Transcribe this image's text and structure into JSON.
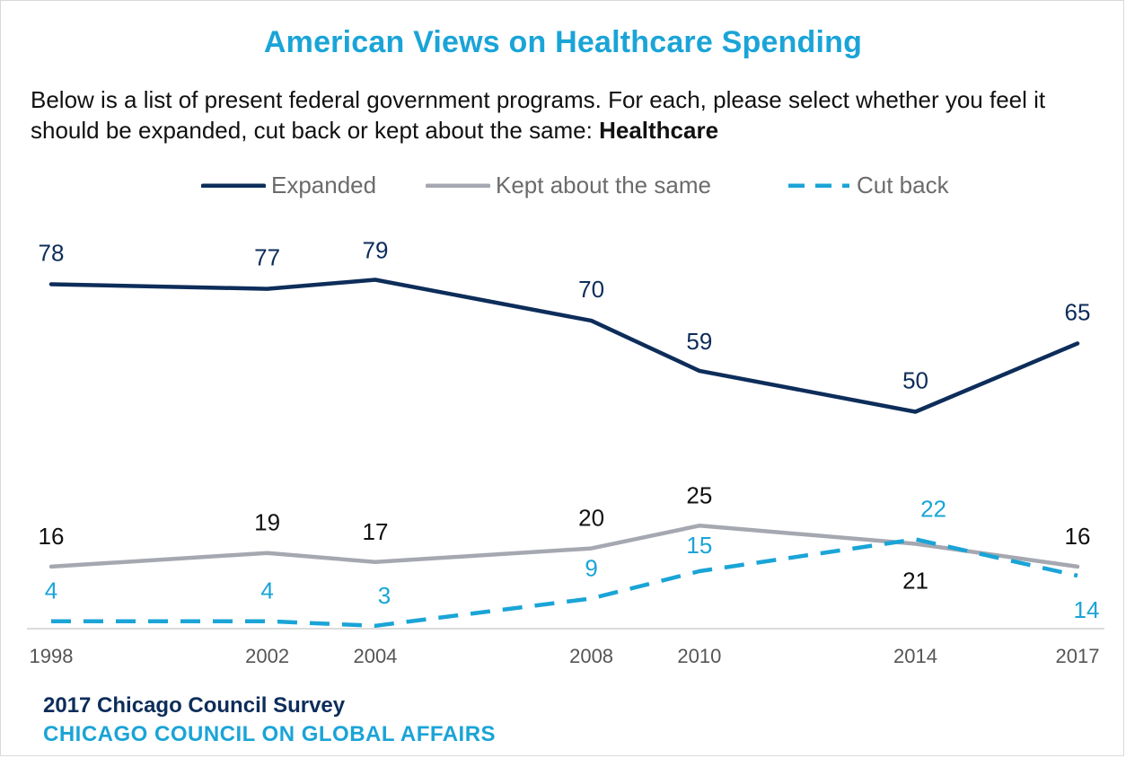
{
  "title": "American Views on Healthcare Spending",
  "subtitle": {
    "text": "Below is a list of present federal government programs. For each, please select whether you feel it should be expanded, cut back or kept about the same: ",
    "emphasis": "Healthcare"
  },
  "footer": {
    "survey": "2017 Chicago Council Survey",
    "organization": "CHICAGO COUNCIL ON GLOBAL AFFAIRS"
  },
  "colors": {
    "expanded": "#0d2d5a",
    "kept": "#a5a8b0",
    "cut": "#1aa4d7",
    "title": "#1aa4d7",
    "kept_label": "#111111"
  },
  "chart_data": {
    "type": "line",
    "title": "American Views on Healthcare Spending",
    "x": [
      1998,
      2002,
      2004,
      2008,
      2010,
      2014,
      2017
    ],
    "x_tick_labels": [
      "1998",
      "2002",
      "2004",
      "2008",
      "2010",
      "2014",
      "2017"
    ],
    "ylim": [
      0,
      100
    ],
    "grid": false,
    "legend_position": "top-center",
    "series": [
      {
        "name": "Expanded",
        "style": "solid",
        "values": [
          78,
          77,
          79,
          70,
          59,
          50,
          65
        ]
      },
      {
        "name": "Kept about the same",
        "style": "solid",
        "values": [
          16,
          19,
          17,
          20,
          25,
          21,
          16
        ]
      },
      {
        "name": "Cut back",
        "style": "dashed",
        "values": [
          4,
          4,
          3,
          9,
          15,
          22,
          14
        ]
      }
    ]
  }
}
